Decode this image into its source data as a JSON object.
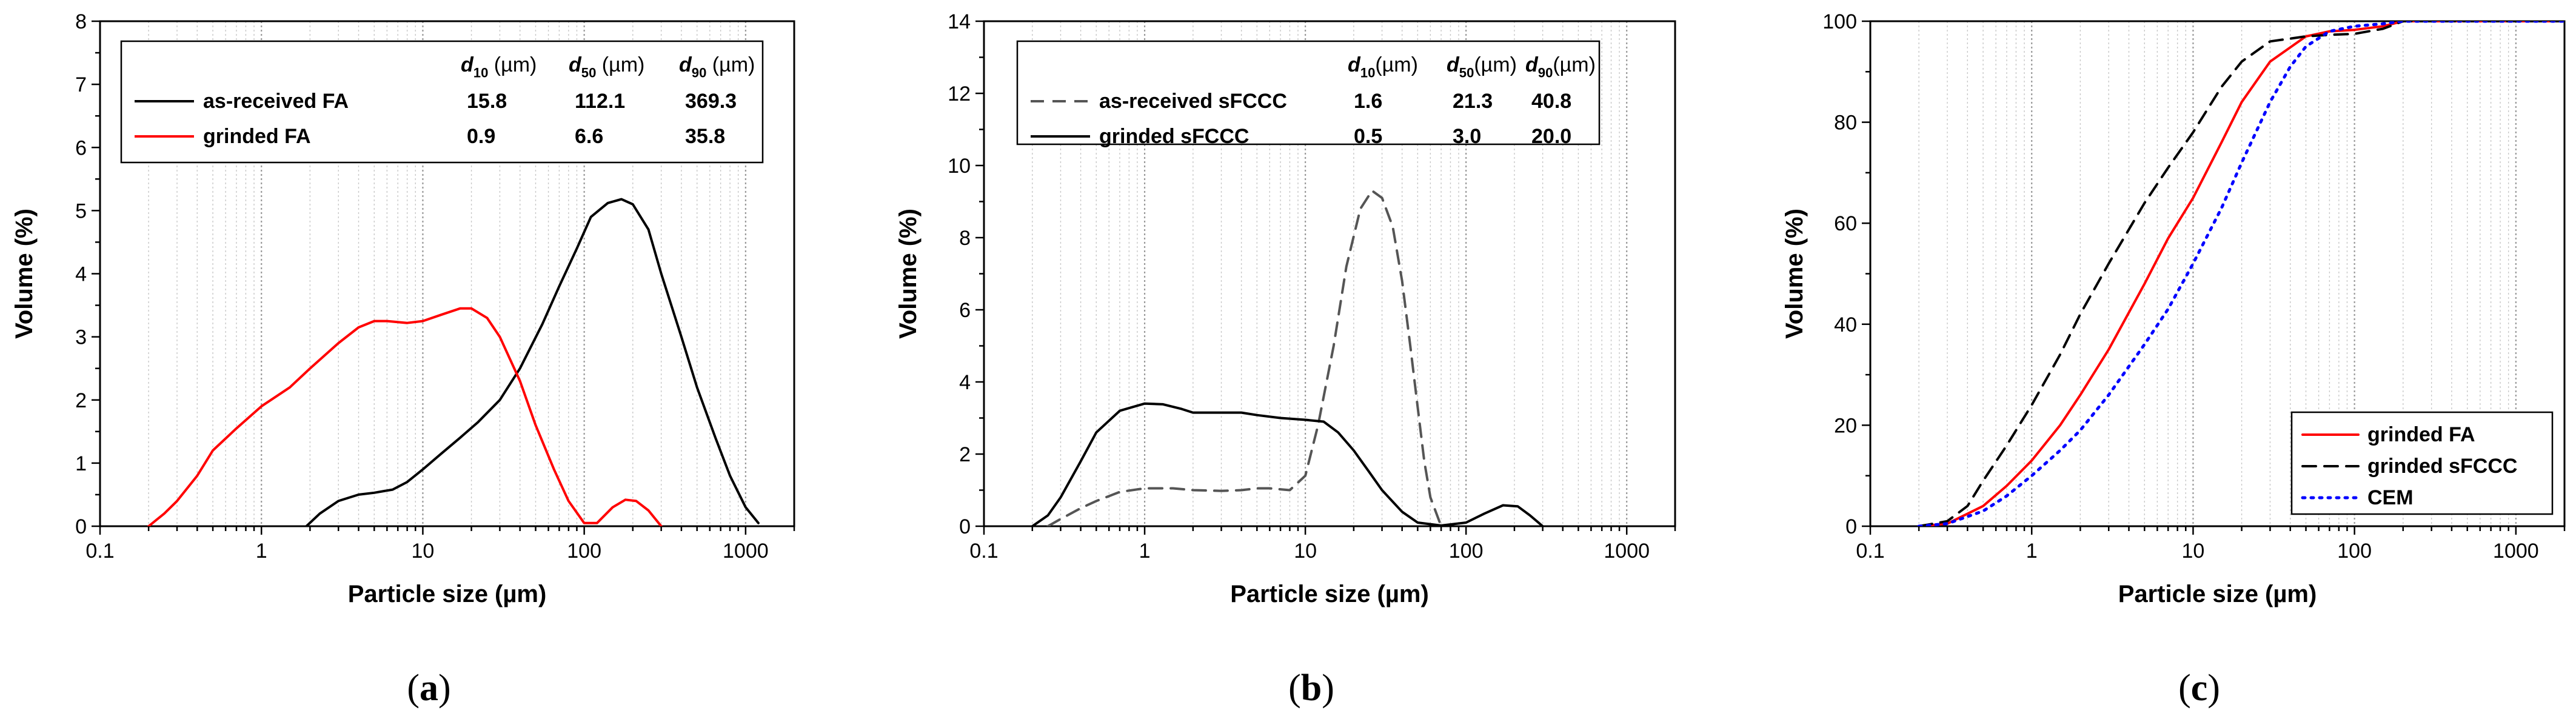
{
  "chart_data": [
    {
      "type": "line",
      "panel_label": "(a)",
      "xlabel": "Particle size (µm)",
      "ylabel": "Volume (%)",
      "xscale": "log",
      "xlim": [
        0.1,
        2000
      ],
      "ylim": [
        0,
        8
      ],
      "x_ticks": [
        "0.1",
        "1",
        "10",
        "100",
        "1000"
      ],
      "y_ticks": [
        "0",
        "1",
        "2",
        "3",
        "4",
        "5",
        "6",
        "7",
        "8"
      ],
      "legend_position": "top-right",
      "legend_header": [
        "d10 (µm)",
        "d50 (µm)",
        "d90 (µm)"
      ],
      "series": [
        {
          "name": "as-received FA",
          "color": "#000000",
          "dash": "solid",
          "d10": "15.8",
          "d50": "112.1",
          "d90": "369.3",
          "x": [
            1.9,
            2.3,
            3,
            4,
            5,
            6.5,
            8,
            10,
            13,
            17,
            22,
            30,
            40,
            55,
            70,
            90,
            110,
            140,
            170,
            200,
            250,
            300,
            400,
            500,
            650,
            800,
            1000,
            1200
          ],
          "y": [
            0,
            0.2,
            0.4,
            0.5,
            0.53,
            0.58,
            0.7,
            0.9,
            1.15,
            1.4,
            1.65,
            2.0,
            2.5,
            3.2,
            3.8,
            4.4,
            4.9,
            5.12,
            5.18,
            5.1,
            4.7,
            4.0,
            3.0,
            2.2,
            1.4,
            0.8,
            0.3,
            0.05
          ]
        },
        {
          "name": "grinded FA",
          "color": "#ff0000",
          "dash": "solid",
          "d10": "0.9",
          "d50": "6.6",
          "d90": "35.8",
          "x": [
            0.2,
            0.25,
            0.3,
            0.4,
            0.5,
            0.7,
            1,
            1.5,
            2,
            3,
            4,
            5,
            6,
            8,
            10,
            13,
            17,
            20,
            25,
            30,
            40,
            50,
            65,
            80,
            100,
            120,
            150,
            180,
            210,
            250,
            300
          ],
          "y": [
            0,
            0.2,
            0.4,
            0.8,
            1.2,
            1.55,
            1.9,
            2.2,
            2.5,
            2.9,
            3.15,
            3.25,
            3.25,
            3.22,
            3.25,
            3.35,
            3.45,
            3.45,
            3.3,
            3.0,
            2.3,
            1.6,
            0.9,
            0.4,
            0.05,
            0.05,
            0.3,
            0.42,
            0.4,
            0.25,
            0
          ]
        }
      ]
    },
    {
      "type": "line",
      "panel_label": "(b)",
      "xlabel": "Particle size (µm)",
      "ylabel": "Volume (%)",
      "xscale": "log",
      "xlim": [
        0.1,
        2000
      ],
      "ylim": [
        0,
        14
      ],
      "x_ticks": [
        "0.1",
        "1",
        "10",
        "100",
        "1000"
      ],
      "y_ticks": [
        "0",
        "2",
        "4",
        "6",
        "8",
        "10",
        "12",
        "14"
      ],
      "legend_position": "top-right",
      "legend_header": [
        "d10(µm)",
        "d50(µm)",
        "d90(µm)"
      ],
      "series": [
        {
          "name": "as-received sFCCC",
          "color": "#555555",
          "dash": "dashed",
          "d10": "1.6",
          "d50": "21.3",
          "d90": "40.8",
          "x": [
            0.25,
            0.3,
            0.4,
            0.5,
            0.7,
            1,
            1.5,
            2,
            3,
            4,
            5,
            6,
            8,
            10,
            12,
            15,
            18,
            22,
            26,
            30,
            35,
            40,
            45,
            50,
            55,
            60,
            70
          ],
          "y": [
            0,
            0.2,
            0.5,
            0.7,
            0.95,
            1.05,
            1.05,
            1.0,
            0.98,
            1.0,
            1.05,
            1.05,
            1.0,
            1.4,
            2.8,
            5.0,
            7.2,
            8.8,
            9.3,
            9.1,
            8.3,
            6.8,
            5.0,
            3.3,
            1.8,
            0.8,
            0
          ]
        },
        {
          "name": "grinded sFCCC",
          "color": "#000000",
          "dash": "solid",
          "d10": "0.5",
          "d50": "3.0",
          "d90": "20.0",
          "x": [
            0.2,
            0.25,
            0.3,
            0.4,
            0.5,
            0.7,
            1,
            1.3,
            1.7,
            2,
            3,
            4,
            5,
            7,
            10,
            13,
            16,
            20,
            25,
            30,
            40,
            50,
            70,
            100,
            130,
            170,
            210,
            250,
            300
          ],
          "y": [
            0,
            0.3,
            0.8,
            1.8,
            2.6,
            3.2,
            3.4,
            3.38,
            3.25,
            3.15,
            3.15,
            3.15,
            3.08,
            3.0,
            2.95,
            2.9,
            2.6,
            2.1,
            1.5,
            1.0,
            0.4,
            0.1,
            0.02,
            0.1,
            0.35,
            0.58,
            0.55,
            0.3,
            0
          ]
        }
      ]
    },
    {
      "type": "line",
      "panel_label": "(c)",
      "xlabel": "Particle size (µm)",
      "ylabel": "Volume (%)",
      "xscale": "log",
      "xlim": [
        0.1,
        2000
      ],
      "ylim": [
        0,
        100
      ],
      "x_ticks": [
        "0.1",
        "1",
        "10",
        "100",
        "1000"
      ],
      "y_ticks": [
        "0",
        "20",
        "40",
        "60",
        "80",
        "100"
      ],
      "legend_position": "bottom-right",
      "series": [
        {
          "name": "grinded FA",
          "color": "#ff0000",
          "dash": "solid",
          "x": [
            0.2,
            0.3,
            0.5,
            0.7,
            1,
            1.5,
            2,
            3,
            5,
            7,
            10,
            15,
            20,
            30,
            50,
            70,
            100,
            150,
            200,
            300,
            2000
          ],
          "y": [
            0,
            0.5,
            4,
            8,
            13,
            20,
            26,
            35,
            48,
            57,
            65,
            76,
            84,
            92,
            97,
            98,
            98.3,
            99,
            100,
            100,
            100
          ]
        },
        {
          "name": "grinded sFCCC",
          "color": "#000000",
          "dash": "dashed",
          "x": [
            0.2,
            0.3,
            0.4,
            0.5,
            0.7,
            1,
            1.5,
            2,
            3,
            5,
            7,
            10,
            15,
            20,
            30,
            50,
            70,
            100,
            150,
            200,
            300,
            2000
          ],
          "y": [
            0,
            1,
            4,
            9,
            16,
            24,
            34,
            42,
            52,
            64,
            71,
            78,
            87,
            92,
            96,
            97,
            97.3,
            97.5,
            98.5,
            100,
            100,
            100
          ]
        },
        {
          "name": "CEM",
          "color": "#0000ff",
          "dash": "dotted",
          "x": [
            0.2,
            0.3,
            0.5,
            0.7,
            1,
            1.5,
            2,
            3,
            5,
            7,
            10,
            15,
            20,
            30,
            40,
            50,
            70,
            100,
            150,
            200,
            300,
            2000
          ],
          "y": [
            0,
            0.5,
            3,
            6,
            10,
            15,
            19,
            26,
            36,
            43,
            52,
            63,
            72,
            84,
            91,
            95,
            98,
            99,
            99.5,
            100,
            100,
            100
          ]
        }
      ]
    }
  ]
}
